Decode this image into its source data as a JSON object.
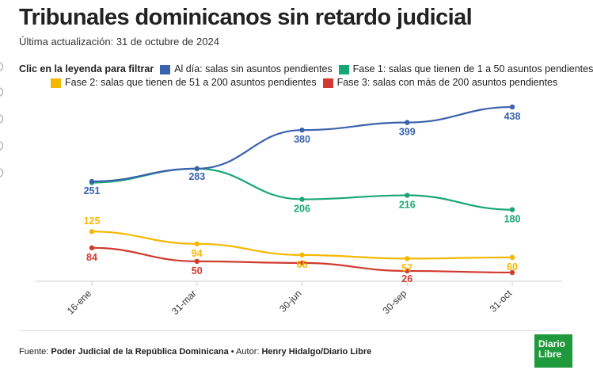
{
  "header": {
    "title": "Tribunales dominicanos sin retardo judicial",
    "subtitle": "Última actualización: 31 de octubre de 2024"
  },
  "legend": {
    "intro": "Clic en la leyenda para filtrar",
    "items": [
      {
        "label": "Al día: salas sin asuntos pendientes",
        "color": "#3a62ae"
      },
      {
        "label": "Fase 1: salas que tienen de 1 a 50 asuntos pendientes",
        "color": "#18a774"
      },
      {
        "label": "Fase 2: salas que tienen de 51 a 200 asuntos pendientes",
        "color": "#f5b800"
      },
      {
        "label": "Fase 3: salas con más de 200 asuntos pendientes",
        "color": "#d13a2f"
      }
    ]
  },
  "chart_data": {
    "type": "line",
    "categories": [
      "16-ene",
      "31-mar",
      "30-jun",
      "30-sep",
      "31-oct"
    ],
    "series": [
      {
        "name": "Al día: salas sin asuntos pendientes",
        "color": "#3a62ae",
        "values": [
          251,
          283,
          380,
          399,
          438
        ]
      },
      {
        "name": "Fase 1: salas que tienen de 1 a 50 asuntos pendientes",
        "color": "#18a774",
        "values": [
          248,
          283,
          206,
          216,
          180
        ]
      },
      {
        "name": "Fase 2: salas que tienen de 51 a 200 asuntos pendientes",
        "color": "#f5b800",
        "values": [
          125,
          94,
          66,
          57,
          60
        ]
      },
      {
        "name": "Fase 3: salas con más de 200 asuntos pendientes",
        "color": "#d13a2f",
        "values": [
          84,
          50,
          46,
          26,
          22
        ]
      }
    ],
    "data_labels": [
      [
        "251",
        "283",
        "380",
        "399",
        "438"
      ],
      [
        "",
        "",
        "206",
        "216",
        "180"
      ],
      [
        "125",
        "94",
        "66",
        "57",
        "60"
      ],
      [
        "84",
        "50",
        "",
        "26",
        ""
      ]
    ],
    "ylim": [
      0,
      460
    ],
    "grid": false
  },
  "footer": {
    "source_prefix": "Fuente: ",
    "source": "Poder Judicial de la República Dominicana",
    "separator": " • Autor: ",
    "author": "Henry Hidalgo/Diario Libre"
  },
  "logo": {
    "line1": "Diario",
    "line2": "Libre"
  }
}
